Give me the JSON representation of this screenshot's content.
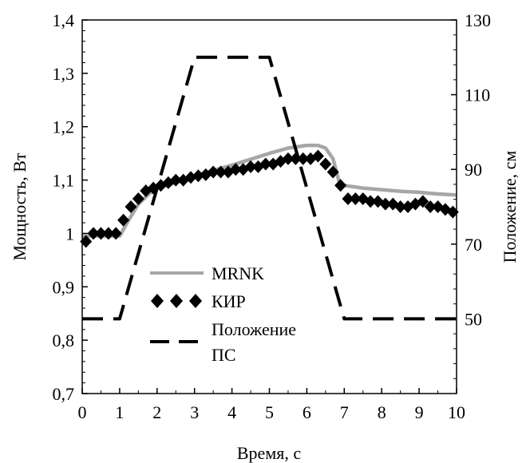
{
  "chart_data": {
    "type": "line",
    "xlabel": "Время, с",
    "ylabel": "Мощность, Вт",
    "y2label": "Положение, см",
    "xlim": [
      0,
      10
    ],
    "ylim": [
      0.7,
      1.4
    ],
    "y2lim": [
      30,
      130
    ],
    "x_ticks": [
      "0",
      "1",
      "2",
      "3",
      "4",
      "5",
      "6",
      "7",
      "8",
      "9",
      "10"
    ],
    "y_ticks": [
      "0,7",
      "0,8",
      "0,9",
      "1",
      "1,1",
      "1,2",
      "1,3",
      "1,4"
    ],
    "y2_ticks": [
      "50",
      "70",
      "90",
      "110",
      "130"
    ],
    "grid": false,
    "legend_position": "lower-left",
    "series": [
      {
        "name": "MRNK",
        "axis": "left",
        "style": "solid",
        "color": "#a6a6a6",
        "x": [
          0,
          1.0,
          1.2,
          1.5,
          1.8,
          2.0,
          2.5,
          3.0,
          3.5,
          4.0,
          4.5,
          5.0,
          5.5,
          6.0,
          6.3,
          6.5,
          6.7,
          6.85,
          7.0,
          7.5,
          8.0,
          8.5,
          9.0,
          9.5,
          10.0
        ],
        "y": [
          0.995,
          0.995,
          1.02,
          1.055,
          1.075,
          1.085,
          1.095,
          1.108,
          1.118,
          1.128,
          1.139,
          1.15,
          1.16,
          1.165,
          1.165,
          1.16,
          1.14,
          1.1,
          1.09,
          1.085,
          1.082,
          1.079,
          1.077,
          1.074,
          1.072
        ]
      },
      {
        "name": "КИР",
        "axis": "left",
        "style": "diamond-markers",
        "color": "#000000",
        "x": [
          0.1,
          0.3,
          0.5,
          0.7,
          0.9,
          1.1,
          1.3,
          1.5,
          1.7,
          1.9,
          2.1,
          2.3,
          2.5,
          2.7,
          2.9,
          3.1,
          3.3,
          3.5,
          3.7,
          3.9,
          4.1,
          4.3,
          4.5,
          4.7,
          4.9,
          5.1,
          5.3,
          5.5,
          5.7,
          5.9,
          6.1,
          6.3,
          6.5,
          6.7,
          6.9,
          7.1,
          7.3,
          7.5,
          7.7,
          7.9,
          8.1,
          8.3,
          8.5,
          8.7,
          8.9,
          9.1,
          9.3,
          9.5,
          9.7,
          9.9
        ],
        "y": [
          0.985,
          1.0,
          1.0,
          1.0,
          1.0,
          1.025,
          1.05,
          1.065,
          1.08,
          1.085,
          1.09,
          1.095,
          1.1,
          1.1,
          1.105,
          1.108,
          1.11,
          1.115,
          1.115,
          1.115,
          1.12,
          1.12,
          1.125,
          1.125,
          1.13,
          1.13,
          1.135,
          1.14,
          1.14,
          1.14,
          1.14,
          1.145,
          1.13,
          1.115,
          1.09,
          1.065,
          1.065,
          1.065,
          1.06,
          1.06,
          1.055,
          1.055,
          1.05,
          1.05,
          1.055,
          1.06,
          1.05,
          1.05,
          1.045,
          1.04
        ]
      },
      {
        "name": "Положение ПС",
        "axis": "right",
        "style": "dashed",
        "color": "#000000",
        "x": [
          0,
          1.0,
          3.0,
          5.0,
          7.0,
          10.0
        ],
        "y": [
          50,
          50,
          120,
          120,
          50,
          50
        ]
      }
    ]
  },
  "legend": {
    "mrnk_label": "MRNK",
    "kir_label": "КИР",
    "position_label_line1": "Положение",
    "position_label_line2": "ПС"
  }
}
